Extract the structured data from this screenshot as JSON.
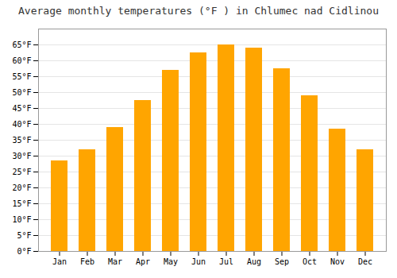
{
  "chart_data": {
    "type": "bar",
    "title": "Average monthly temperatures (°F ) in Chlumec nad Cidlinou",
    "categories": [
      "Jan",
      "Feb",
      "Mar",
      "Apr",
      "May",
      "Jun",
      "Jul",
      "Aug",
      "Sep",
      "Oct",
      "Nov",
      "Dec"
    ],
    "values": [
      28.5,
      32.0,
      39.0,
      47.5,
      57.0,
      62.5,
      65.0,
      64.0,
      57.5,
      49.0,
      38.5,
      32.0
    ],
    "color": "#FFA500",
    "ylim": [
      0,
      70
    ],
    "yticks": [
      {
        "value": 0,
        "label": "0°F"
      },
      {
        "value": 5,
        "label": "5°F"
      },
      {
        "value": 10,
        "label": "10°F"
      },
      {
        "value": 15,
        "label": "15°F"
      },
      {
        "value": 20,
        "label": "20°F"
      },
      {
        "value": 25,
        "label": "25°F"
      },
      {
        "value": 30,
        "label": "30°F"
      },
      {
        "value": 35,
        "label": "35°F"
      },
      {
        "value": 40,
        "label": "40°F"
      },
      {
        "value": 45,
        "label": "45°F"
      },
      {
        "value": 50,
        "label": "50°F"
      },
      {
        "value": 55,
        "label": "55°F"
      },
      {
        "value": 60,
        "label": "60°F"
      },
      {
        "value": 65,
        "label": "65°F"
      }
    ],
    "grid": true
  }
}
